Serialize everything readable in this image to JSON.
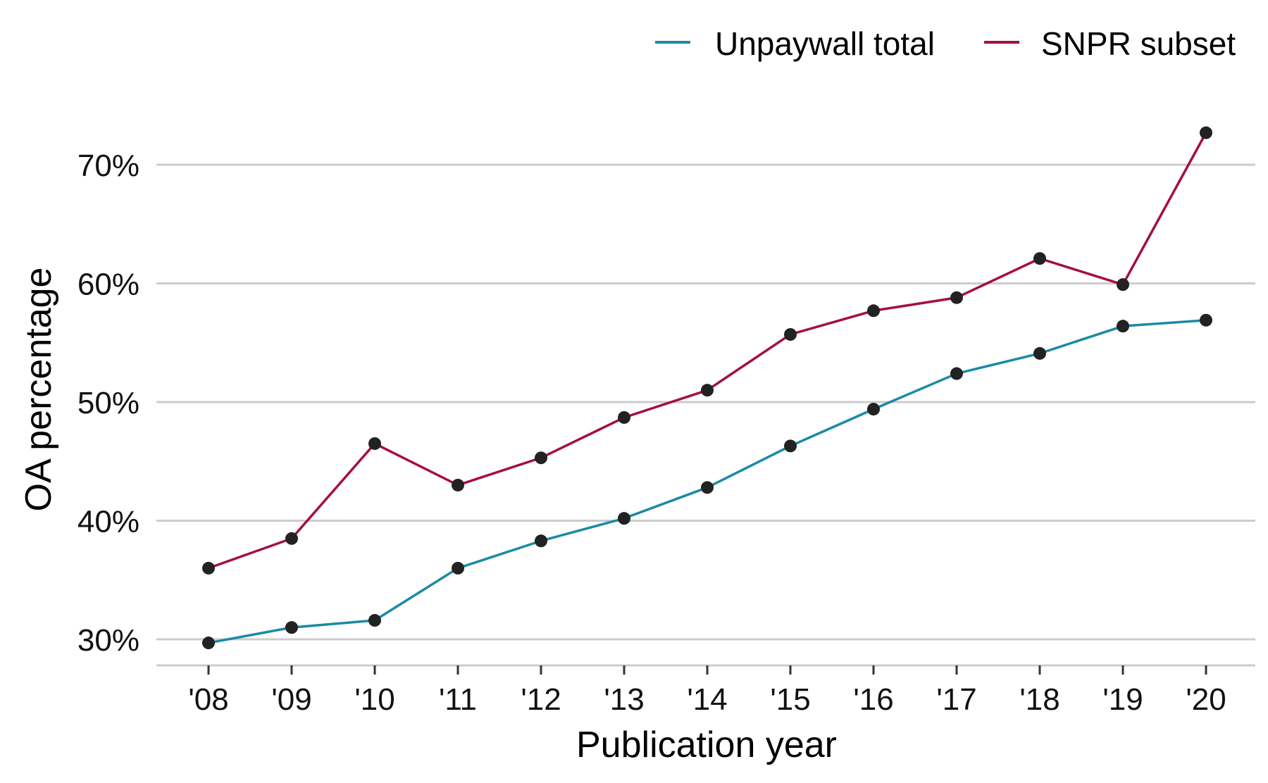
{
  "chart_data": {
    "type": "line",
    "xlabel": "Publication year",
    "ylabel": "OA percentage",
    "categories": [
      "'08",
      "'09",
      "'10",
      "'11",
      "'12",
      "'13",
      "'14",
      "'15",
      "'16",
      "'17",
      "'18",
      "'19",
      "'20"
    ],
    "y_ticks": [
      30,
      40,
      50,
      60,
      70
    ],
    "y_tick_labels": [
      "30%",
      "40%",
      "50%",
      "60%",
      "70%"
    ],
    "ylim": [
      27.6,
      74.2
    ],
    "grid": "horizontal major only",
    "legend_position": "top-right",
    "series": [
      {
        "name": "Unpaywall total",
        "color": "#1b8aa6",
        "values": [
          29.7,
          31.0,
          31.6,
          36.0,
          38.3,
          40.2,
          42.8,
          46.3,
          49.4,
          52.4,
          54.1,
          56.4,
          56.9
        ]
      },
      {
        "name": "SNPR subset",
        "color": "#a50f3e",
        "values": [
          36.0,
          38.5,
          46.5,
          43.0,
          45.3,
          48.7,
          51.0,
          55.7,
          57.7,
          58.8,
          62.1,
          59.9,
          72.7
        ]
      }
    ],
    "marker_color": "#222222",
    "gridline_color": "#cccccc"
  }
}
